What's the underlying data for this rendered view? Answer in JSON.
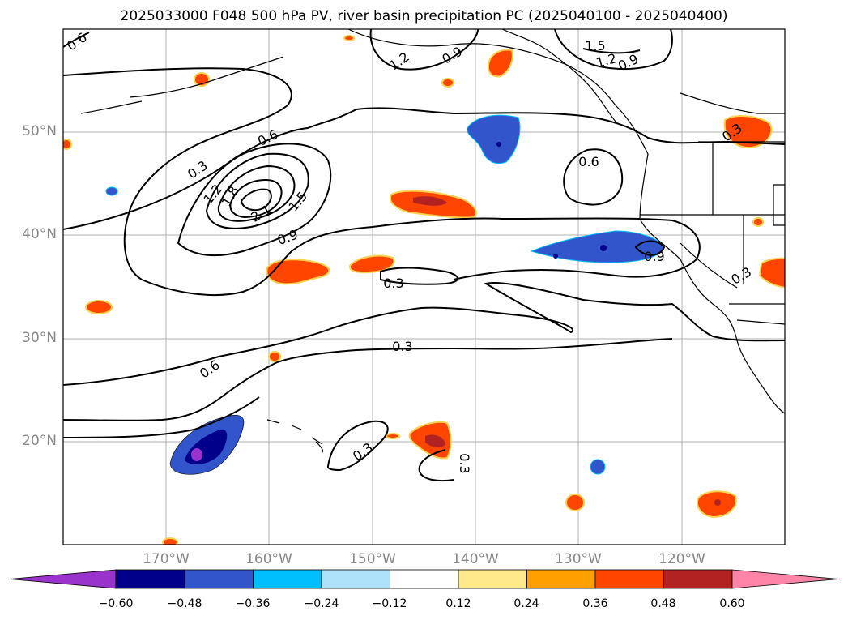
{
  "title": "2025033000 F048 500 hPa PV, river basin precipitation PC (2025040100 - 2025040400)",
  "lat_labels": [
    "50°N",
    "40°N",
    "30°N",
    "20°N"
  ],
  "lon_labels": [
    "170°W",
    "160°W",
    "150°W",
    "140°W",
    "130°W",
    "120°W"
  ],
  "contour_labels": [
    "0.6",
    "1.2",
    "0.9",
    "1.5",
    "1.2",
    "0.9",
    "0.3",
    "0.3",
    "1.8",
    "1.2",
    "2.1",
    "1.5",
    "0.6",
    "0.9",
    "0.6",
    "0.9",
    "0.3",
    "0.3",
    "0.3",
    "0.6",
    "0.3",
    "0.3"
  ],
  "colorbar": {
    "ticks": [
      "−0.60",
      "−0.48",
      "−0.36",
      "−0.24",
      "−0.12",
      "0.12",
      "0.24",
      "0.36",
      "0.48",
      "0.60"
    ],
    "colors": [
      "#9933cc",
      "#00008b",
      "#3355cc",
      "#00bfff",
      "#aee2fa",
      "#ffffff",
      "#ffe98a",
      "#ffa000",
      "#ff4500",
      "#b22222",
      "#ff85a8"
    ]
  },
  "colors": {
    "land_outline": "#000000",
    "grid": "#b0b0b0",
    "axis_label": "#888888"
  }
}
